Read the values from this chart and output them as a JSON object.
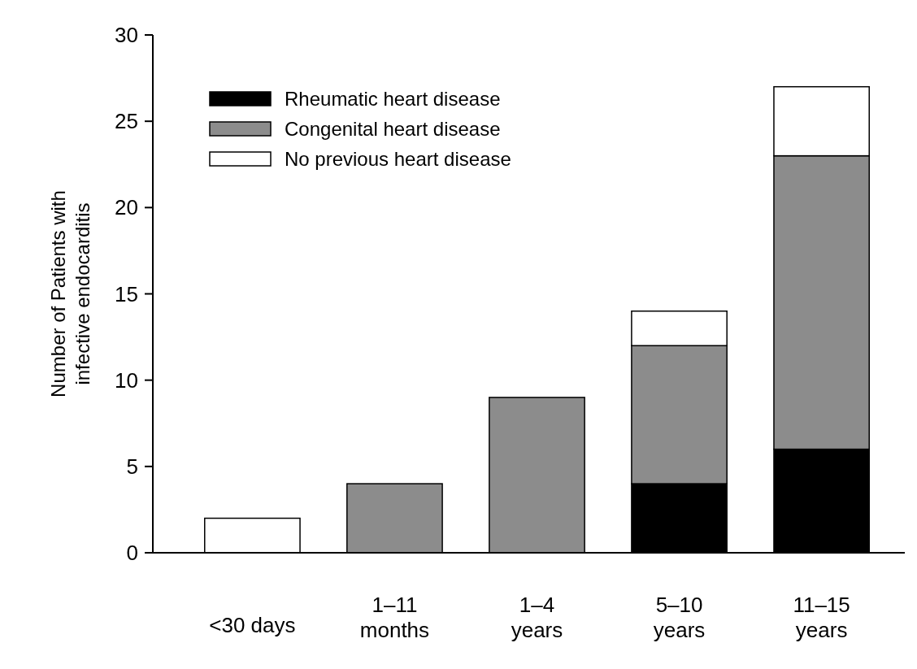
{
  "chart_data": {
    "type": "bar",
    "stacked": true,
    "ylabel": "Number of Patients with\ninfective endocarditis",
    "categories": [
      "<30 days",
      "1–11\nmonths",
      "1–4\nyears",
      "5–10\nyears",
      "11–15\nyears"
    ],
    "series": [
      {
        "name": "Rheumatic heart disease",
        "color": "#000000",
        "values": [
          0,
          0,
          0,
          4,
          6
        ]
      },
      {
        "name": "Congenital heart disease",
        "color": "#8c8c8c",
        "values": [
          0,
          4,
          9,
          8,
          17
        ]
      },
      {
        "name": "No previous heart disease",
        "color": "#ffffff",
        "values": [
          2,
          0,
          0,
          2,
          4
        ]
      }
    ],
    "ylim": [
      0,
      30
    ],
    "yticks": [
      0,
      5,
      10,
      15,
      20,
      25,
      30
    ],
    "grid": false,
    "legend": "top left"
  }
}
